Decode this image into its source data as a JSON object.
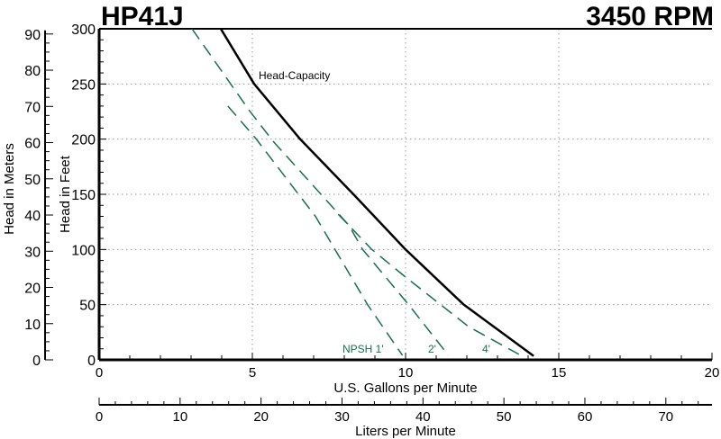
{
  "chart_data": {
    "type": "line",
    "title": "HP41J",
    "subtitle": "3450 RPM",
    "xlabel": "U.S. Gallons per Minute",
    "xlabel2": "Liters per Minute",
    "ylabel": "Head in Feet",
    "ylabel2": "Head in Meters",
    "xlim": [
      0,
      20
    ],
    "ylim": [
      0,
      300
    ],
    "x2lim": [
      0,
      75.7
    ],
    "y2lim": [
      0,
      91.44
    ],
    "xticks": [
      0,
      5,
      10,
      15,
      20
    ],
    "yticks": [
      0,
      50,
      100,
      150,
      200,
      250,
      300
    ],
    "x2ticks": [
      0,
      10,
      20,
      30,
      40,
      50,
      60,
      70
    ],
    "y2ticks": [
      0,
      10,
      20,
      30,
      40,
      50,
      60,
      70,
      80,
      90
    ],
    "grid": true,
    "colors": {
      "head_capacity": "#000000",
      "npsh": "#17704a"
    },
    "series": [
      {
        "name": "Head-Capacity",
        "style": "solid",
        "x": [
          3.97,
          5.06,
          6.56,
          8.3,
          10.0,
          11.9,
          14.18
        ],
        "y": [
          300,
          250,
          200,
          150,
          100,
          50,
          3.5
        ]
      },
      {
        "name": "NPSH 1'",
        "style": "dashed",
        "x": [
          4.2,
          5.1,
          7.06,
          8.76,
          9.9
        ],
        "y": [
          230,
          201,
          130,
          50,
          4
        ]
      },
      {
        "name": "2'",
        "style": "dashed",
        "x": [
          3.03,
          4.9,
          5.68,
          8.15,
          8.6,
          10.1,
          11.4
        ],
        "y": [
          300,
          226,
          198,
          122,
          100,
          50,
          4
        ]
      },
      {
        "name": "4'",
        "style": "dashed",
        "x": [
          7.8,
          8.9,
          10.0,
          12.06,
          13.7
        ],
        "y": [
          132,
          100,
          75,
          30,
          5
        ]
      }
    ]
  }
}
